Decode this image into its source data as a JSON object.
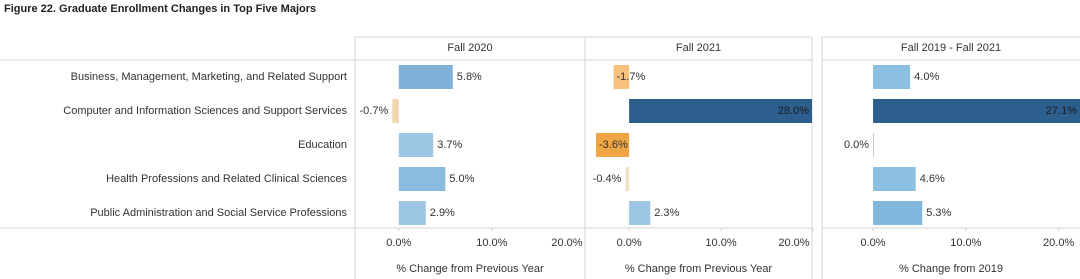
{
  "chart_data": {
    "type": "bar",
    "orientation": "horizontal",
    "title": "Figure 22. Graduate Enrollment Changes in Top Five Majors",
    "categories": [
      "Business, Management, Marketing, and Related Support",
      "Computer and Information Sciences and Support Services",
      "Education",
      "Health Professions and Related Clinical Sciences",
      "Public Administration and Social Service Professions"
    ],
    "panels": [
      {
        "title": "Fall 2020",
        "xlabel": "% Change from Previous Year",
        "values": [
          5.8,
          -0.7,
          3.7,
          5.0,
          2.9
        ],
        "value_labels": [
          "5.8%",
          "-0.7%",
          "3.7%",
          "5.0%",
          "2.9%"
        ],
        "colors": [
          "#7fb1d9",
          "#f2d7b0",
          "#9cc6e4",
          "#8abce0",
          "#9cc6e4"
        ],
        "xlim": [
          -4.7,
          20
        ],
        "xticks": [
          {
            "value": 0,
            "label": "0.0%"
          },
          {
            "value": 10,
            "label": "10.0%"
          },
          {
            "value": 20,
            "label": "20.0%"
          }
        ]
      },
      {
        "title": "Fall 2021",
        "xlabel": "% Change from Previous Year",
        "values": [
          -1.7,
          28.0,
          -3.6,
          -0.4,
          2.3
        ],
        "value_labels": [
          "-1.7%",
          "28.0%",
          "-3.6%",
          "-0.4%",
          "2.3%"
        ],
        "colors": [
          "#f6c27e",
          "#2d5f8e",
          "#f0a545",
          "#f3dfc6",
          "#9cc6e4"
        ],
        "xlim": [
          -4.8,
          19.9
        ],
        "xticks": [
          {
            "value": 0,
            "label": "0.0%"
          },
          {
            "value": 10,
            "label": "10.0%"
          },
          {
            "value": 20,
            "label": "20.0%"
          }
        ]
      },
      {
        "title": "Fall 2019 - Fall 2021",
        "xlabel": "% Change from 2019",
        "values": [
          4.0,
          27.1,
          0.0,
          4.6,
          5.3
        ],
        "value_labels": [
          "4.0%",
          "27.1%",
          "0.0%",
          "4.6%",
          "5.3%"
        ],
        "colors": [
          "#8cc0e2",
          "#2d5f8e",
          "#c8c8c8",
          "#8cc0e2",
          "#82b7dd"
        ],
        "xlim": [
          -5.5,
          22.3
        ],
        "xticks": [
          {
            "value": 0,
            "label": "0.0%"
          },
          {
            "value": 10,
            "label": "10.0%"
          },
          {
            "value": 20,
            "label": "20.0%"
          }
        ]
      }
    ]
  }
}
